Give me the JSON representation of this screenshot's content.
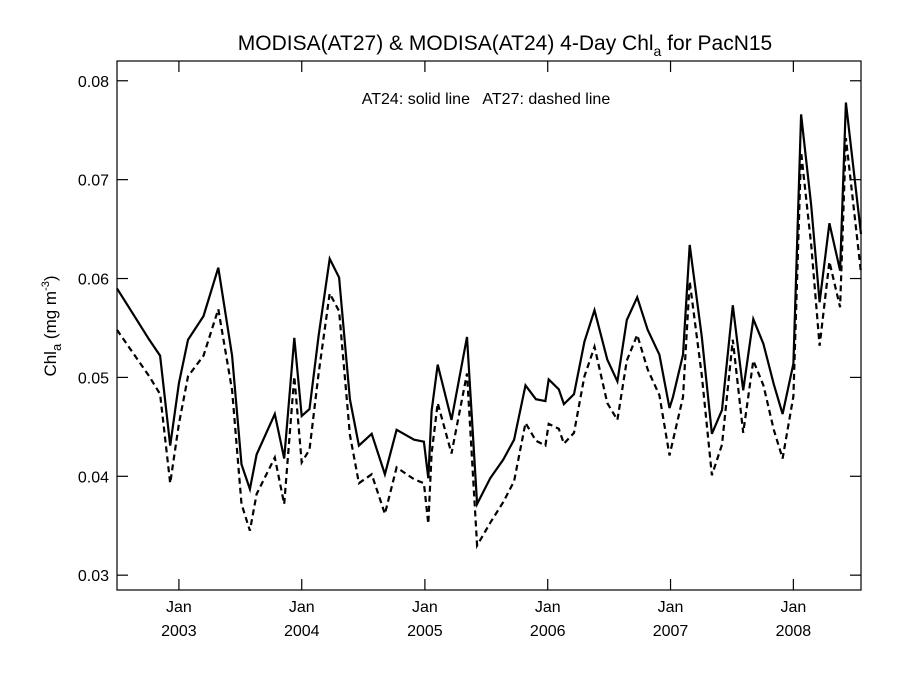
{
  "chart_data": {
    "type": "line",
    "title": {
      "main": "MODISA(AT27) & MODISA(AT24) 4-Day Chl",
      "sub": "a",
      "rest": " for PacN15"
    },
    "ylabel": {
      "main": "Chl",
      "sub": "a",
      "rest": " (mg m",
      "sup": "-3",
      "close": ")"
    },
    "xlabel": "",
    "annotation": "AT24: solid line   AT27: dashed line",
    "ylim": [
      0.0285,
      0.082
    ],
    "xlim": [
      "2002-07-01",
      "2008-07-20"
    ],
    "y_ticks": [
      "0.03",
      "0.04",
      "0.05",
      "0.06",
      "0.07",
      "0.08"
    ],
    "x_ticks": [
      {
        "date": "2003-01-01",
        "month": "Jan",
        "year": "2003"
      },
      {
        "date": "2004-01-01",
        "month": "Jan",
        "year": "2004"
      },
      {
        "date": "2005-01-01",
        "month": "Jan",
        "year": "2005"
      },
      {
        "date": "2006-01-01",
        "month": "Jan",
        "year": "2006"
      },
      {
        "date": "2007-01-01",
        "month": "Jan",
        "year": "2007"
      },
      {
        "date": "2008-01-01",
        "month": "Jan",
        "year": "2008"
      }
    ],
    "x": [
      "2002-07-01",
      "2002-10-05",
      "2002-11-06",
      "2002-12-06",
      "2003-01-01",
      "2003-01-28",
      "2003-03-15",
      "2003-04-28",
      "2003-06-08",
      "2003-07-06",
      "2003-07-31",
      "2003-08-20",
      "2003-10-13",
      "2003-11-10",
      "2003-12-10",
      "2004-01-01",
      "2004-01-24",
      "2004-02-20",
      "2004-03-24",
      "2004-04-21",
      "2004-05-23",
      "2004-06-19",
      "2004-07-27",
      "2004-09-04",
      "2004-10-09",
      "2004-11-30",
      "2004-12-29",
      "2005-01-11",
      "2005-01-21",
      "2005-02-08",
      "2005-03-21",
      "2005-05-06",
      "2005-06-05",
      "2005-07-14",
      "2005-08-22",
      "2005-09-23",
      "2005-10-27",
      "2005-11-27",
      "2005-12-25",
      "2006-01-04",
      "2006-02-03",
      "2006-02-18",
      "2006-03-20",
      "2006-04-20",
      "2006-05-20",
      "2006-06-27",
      "2006-07-27",
      "2006-08-24",
      "2006-09-24",
      "2006-10-25",
      "2006-11-29",
      "2006-12-29",
      "2007-01-08",
      "2007-02-07",
      "2007-02-27",
      "2007-04-04",
      "2007-05-04",
      "2007-06-03",
      "2007-07-05",
      "2007-08-05",
      "2007-09-04",
      "2007-10-04",
      "2007-11-04",
      "2007-11-30",
      "2008-01-01",
      "2008-01-24",
      "2008-02-23",
      "2008-03-19",
      "2008-04-17",
      "2008-05-19",
      "2008-06-05",
      "2008-07-20"
    ],
    "series": [
      {
        "style": "solid",
        "values": [
          0.059,
          0.0538,
          0.0522,
          0.0431,
          0.0494,
          0.0538,
          0.0562,
          0.0611,
          0.0522,
          0.0412,
          0.0387,
          0.0422,
          0.0463,
          0.0418,
          0.054,
          0.0461,
          0.0468,
          0.0542,
          0.062,
          0.0601,
          0.0478,
          0.0431,
          0.0443,
          0.0402,
          0.0447,
          0.0437,
          0.0435,
          0.0398,
          0.0466,
          0.0513,
          0.0457,
          0.0541,
          0.0372,
          0.0398,
          0.0417,
          0.0437,
          0.0492,
          0.0478,
          0.0476,
          0.0498,
          0.0488,
          0.0473,
          0.0483,
          0.0536,
          0.0568,
          0.0518,
          0.0496,
          0.0558,
          0.0581,
          0.0548,
          0.0523,
          0.0469,
          0.048,
          0.0523,
          0.0634,
          0.0541,
          0.0443,
          0.0467,
          0.0573,
          0.0487,
          0.0559,
          0.0534,
          0.0493,
          0.0463,
          0.0514,
          0.0766,
          0.0674,
          0.0576,
          0.0656,
          0.0608,
          0.0778,
          0.0645
        ]
      },
      {
        "style": "dashed",
        "values": [
          0.0548,
          0.0501,
          0.0483,
          0.0393,
          0.0453,
          0.0501,
          0.0522,
          0.0569,
          0.0487,
          0.0372,
          0.0345,
          0.0382,
          0.0419,
          0.0372,
          0.0501,
          0.0414,
          0.0427,
          0.0504,
          0.0585,
          0.0567,
          0.0442,
          0.0393,
          0.0402,
          0.0362,
          0.0409,
          0.0397,
          0.0393,
          0.0352,
          0.0423,
          0.0474,
          0.0423,
          0.0504,
          0.033,
          0.0353,
          0.0374,
          0.0395,
          0.0454,
          0.0436,
          0.0431,
          0.0453,
          0.0448,
          0.0433,
          0.0444,
          0.0501,
          0.0531,
          0.0474,
          0.0457,
          0.0517,
          0.0543,
          0.0508,
          0.0482,
          0.0421,
          0.0436,
          0.048,
          0.0597,
          0.0502,
          0.0401,
          0.0432,
          0.0538,
          0.0444,
          0.0517,
          0.0492,
          0.0447,
          0.0418,
          0.0481,
          0.0728,
          0.0634,
          0.0532,
          0.0617,
          0.0571,
          0.0742,
          0.0606
        ]
      }
    ]
  }
}
